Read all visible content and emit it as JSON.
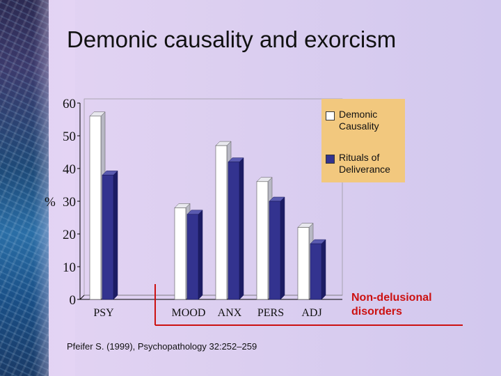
{
  "slide": {
    "title": "Demonic causality and exorcism",
    "citation": "Pfeifer S. (1999), Psychopathology 32:252–259",
    "annotation": "Non-delusional\ndisorders"
  },
  "chart_data": {
    "type": "bar",
    "ylabel": "%",
    "ylim": [
      0,
      60
    ],
    "yticks": [
      0,
      10,
      20,
      30,
      40,
      50,
      60
    ],
    "categories": [
      "PSY",
      "MOOD",
      "ANX",
      "PERS",
      "ADJ"
    ],
    "series": [
      {
        "name": "Demonic\nCausality",
        "color": "#ffffff",
        "values": [
          56,
          28,
          47,
          36,
          22
        ]
      },
      {
        "name": "Rituals of\nDeliverance",
        "color": "#33338f",
        "values": [
          38,
          26,
          42,
          30,
          17
        ]
      }
    ],
    "legend_position": "top-right",
    "grid": false
  },
  "colors": {
    "annotation": "#cc1111",
    "legend_background": "#f2c87e",
    "axis": "#000000"
  }
}
